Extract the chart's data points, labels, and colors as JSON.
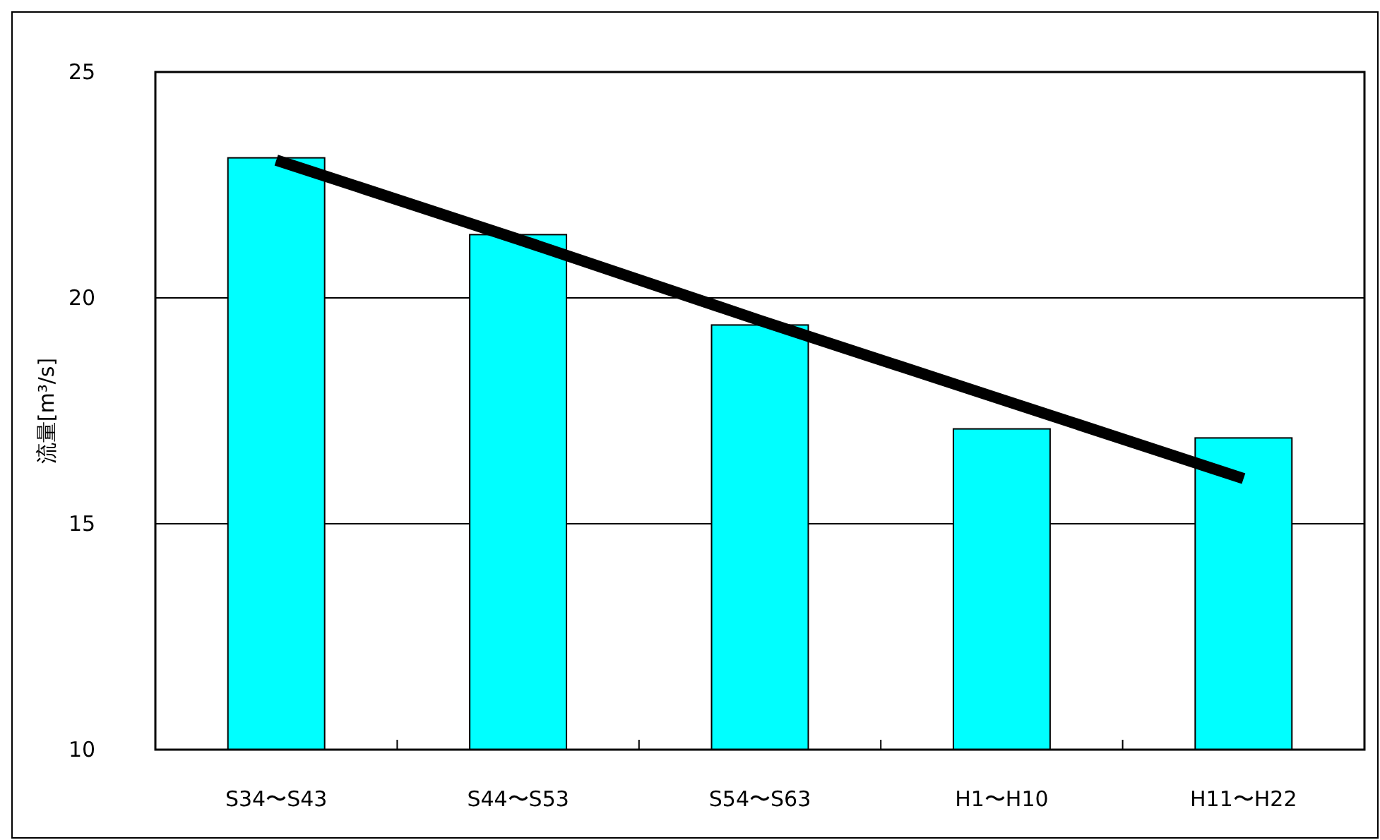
{
  "chart_data": {
    "type": "bar",
    "ylabel": "流量[m³/s]",
    "categories": [
      "S34〜S43",
      "S44〜S53",
      "S54〜S63",
      "H1〜H10",
      "H11〜H22"
    ],
    "series": [
      {
        "color": "#00ffff",
        "values": [
          23.1,
          21.4,
          19.4,
          17.1,
          16.9
        ]
      },
      {
        "type": "line",
        "color": "#000000",
        "values": [
          23.05,
          21.3,
          19.5,
          17.75,
          16.0
        ]
      }
    ],
    "ylim": [
      10,
      25
    ],
    "yticks": [
      10,
      15,
      20,
      25
    ],
    "grid": "y"
  }
}
